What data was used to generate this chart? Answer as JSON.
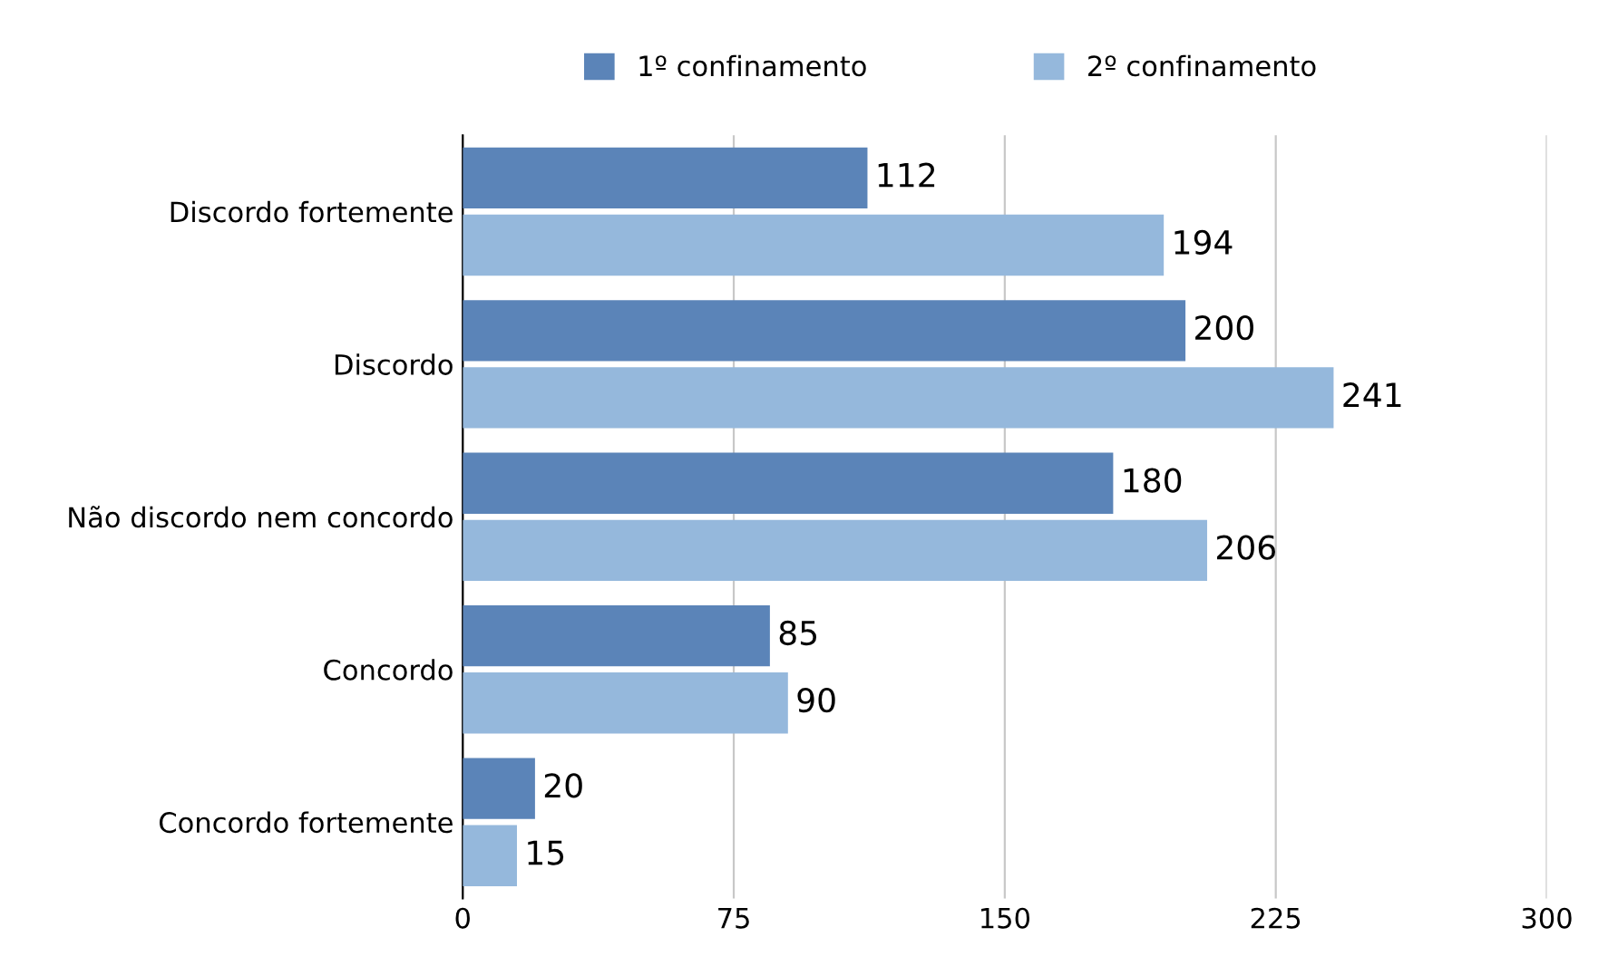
{
  "chart_data": {
    "type": "bar",
    "orientation": "horizontal",
    "categories": [
      "Discordo fortemente",
      "Discordo",
      "Não discordo nem concordo",
      "Concordo",
      "Concordo fortemente"
    ],
    "series": [
      {
        "name": "1º confinamento",
        "color": "#5b84b8",
        "values": [
          112,
          200,
          180,
          85,
          20
        ]
      },
      {
        "name": "2º confinamento",
        "color": "#95b8dc",
        "values": [
          194,
          241,
          206,
          90,
          15
        ]
      }
    ],
    "xlim": [
      0,
      300
    ],
    "xticks": [
      0,
      75,
      150,
      225,
      300
    ],
    "grid": "x",
    "legend": "top",
    "data_labels": true
  }
}
